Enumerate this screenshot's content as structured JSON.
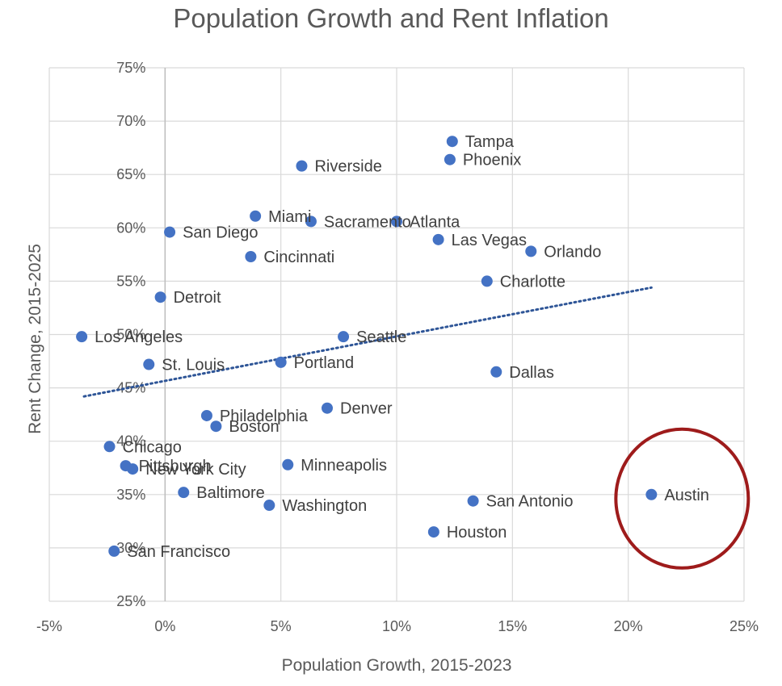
{
  "chart_data": {
    "type": "scatter",
    "title": "Population Growth and Rent Inflation",
    "xlabel": "Population Growth, 2015-2023",
    "ylabel": "Rent Change, 2015-2025",
    "xlim": [
      -5,
      25
    ],
    "ylim": [
      25,
      75
    ],
    "x_ticks": [
      -5,
      0,
      5,
      10,
      15,
      20,
      25
    ],
    "y_ticks": [
      25,
      30,
      35,
      40,
      45,
      50,
      55,
      60,
      65,
      70,
      75
    ],
    "x_tick_labels": [
      "-5%",
      "0%",
      "5%",
      "10%",
      "15%",
      "20%",
      "25%"
    ],
    "y_tick_labels": [
      "25%",
      "30%",
      "35%",
      "40%",
      "45%",
      "50%",
      "55%",
      "60%",
      "65%",
      "70%",
      "75%"
    ],
    "grid": true,
    "trendline": {
      "style": "dotted linear",
      "x": [
        -3.5,
        21
      ],
      "y": [
        44.2,
        54.4
      ]
    },
    "highlight": {
      "point": "Austin",
      "shape": "circle",
      "color": "#9e1b1b"
    },
    "colors": {
      "points": "#4472c4",
      "trendline": "#2e5597",
      "grid": "#d9d9d9",
      "highlight": "#9e1b1b"
    },
    "points": [
      {
        "label": "Tampa",
        "x": 12.4,
        "y": 68.1
      },
      {
        "label": "Phoenix",
        "x": 12.3,
        "y": 66.4
      },
      {
        "label": "Riverside",
        "x": 5.9,
        "y": 65.8
      },
      {
        "label": "Miami",
        "x": 3.9,
        "y": 61.1
      },
      {
        "label": "Sacramento",
        "x": 6.3,
        "y": 60.6
      },
      {
        "label": "Atlanta",
        "x": 10.0,
        "y": 60.6
      },
      {
        "label": "San Diego",
        "x": 0.2,
        "y": 59.6
      },
      {
        "label": "Las Vegas",
        "x": 11.8,
        "y": 58.9
      },
      {
        "label": "Orlando",
        "x": 15.8,
        "y": 57.8
      },
      {
        "label": "Cincinnati",
        "x": 3.7,
        "y": 57.3
      },
      {
        "label": "Charlotte",
        "x": 13.9,
        "y": 55.0
      },
      {
        "label": "Detroit",
        "x": -0.2,
        "y": 53.5
      },
      {
        "label": "Los Angeles",
        "x": -3.6,
        "y": 49.8
      },
      {
        "label": "Seattle",
        "x": 7.7,
        "y": 49.8
      },
      {
        "label": "St. Louis",
        "x": -0.7,
        "y": 47.2
      },
      {
        "label": "Portland",
        "x": 5.0,
        "y": 47.4
      },
      {
        "label": "Dallas",
        "x": 14.3,
        "y": 46.5
      },
      {
        "label": "Denver",
        "x": 7.0,
        "y": 43.1
      },
      {
        "label": "Philadelphia",
        "x": 1.8,
        "y": 42.4
      },
      {
        "label": "Boston",
        "x": 2.2,
        "y": 41.4
      },
      {
        "label": "Chicago",
        "x": -2.4,
        "y": 39.5
      },
      {
        "label": "Minneapolis",
        "x": 5.3,
        "y": 37.8
      },
      {
        "label": "Pittsburgh",
        "x": -1.7,
        "y": 37.7
      },
      {
        "label": "New York City",
        "x": -1.4,
        "y": 37.4
      },
      {
        "label": "Baltimore",
        "x": 0.8,
        "y": 35.2
      },
      {
        "label": "Washington",
        "x": 4.5,
        "y": 34.0
      },
      {
        "label": "San Antonio",
        "x": 13.3,
        "y": 34.4
      },
      {
        "label": "Austin",
        "x": 21.0,
        "y": 35.0
      },
      {
        "label": "Houston",
        "x": 11.6,
        "y": 31.5
      },
      {
        "label": "San Francisco",
        "x": -2.2,
        "y": 29.7
      }
    ]
  }
}
